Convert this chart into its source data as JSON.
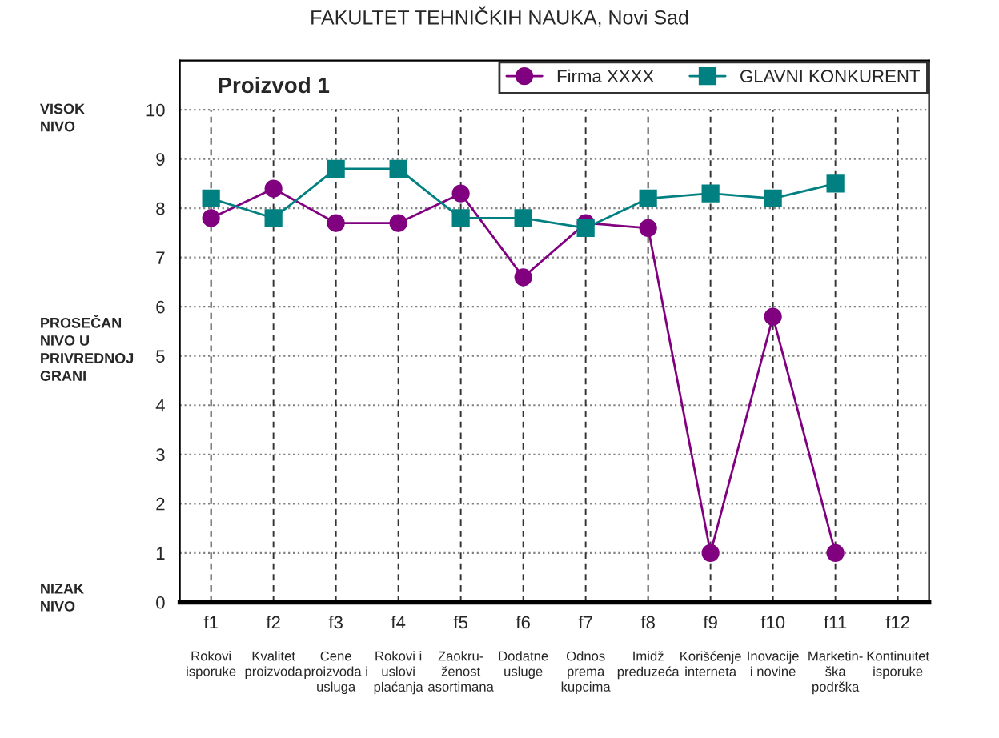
{
  "chart_data": {
    "type": "line",
    "title": "FAKULTET TEHNIČKIH NAUKA, Novi Sad",
    "subtitle": "Proizvod 1",
    "categories": [
      "f1",
      "f2",
      "f3",
      "f4",
      "f5",
      "f6",
      "f7",
      "f8",
      "f9",
      "f10",
      "f11",
      "f12"
    ],
    "series": [
      {
        "name": "Firma XXXX",
        "color": "#800080",
        "marker": "circle",
        "values": [
          7.8,
          8.4,
          7.7,
          7.7,
          8.3,
          6.6,
          7.7,
          7.6,
          1,
          5.8,
          1,
          null
        ]
      },
      {
        "name": "GLAVNI KONKURENT",
        "color": "#008080",
        "marker": "square",
        "values": [
          8.2,
          7.8,
          8.8,
          8.8,
          7.8,
          7.8,
          7.6,
          8.2,
          8.3,
          8.2,
          8.5,
          null
        ]
      }
    ],
    "ylim": [
      0,
      11
    ],
    "yticks": [
      0,
      1,
      2,
      3,
      4,
      5,
      6,
      7,
      8,
      9,
      10
    ],
    "grid": true,
    "legend": "top right",
    "line_style": "solid",
    "annotations": [
      "Rokovi\nisporuke",
      "Kvalitet\nproizvoda",
      "Cene\nproizvoda i\nusluga",
      "Rokovi i\nuslovi\nplaćanja",
      "Zaokru-\nženost\nasortimana",
      "Dodatne\nusluge",
      "Odnos\nprema\nkupcima",
      "Imidž\npreduzeća",
      "Korišćenje\ninterneta",
      "Inovacije\ni novine",
      "Marketin-\nška\npodrška",
      "Kontinuitet\nisporuke",
      "VISOK\nNIVO",
      "PROSEČAN\nNIVO U\nPRIVREDNOJ\nGRANI",
      "NIZAK\nNIVO"
    ]
  }
}
